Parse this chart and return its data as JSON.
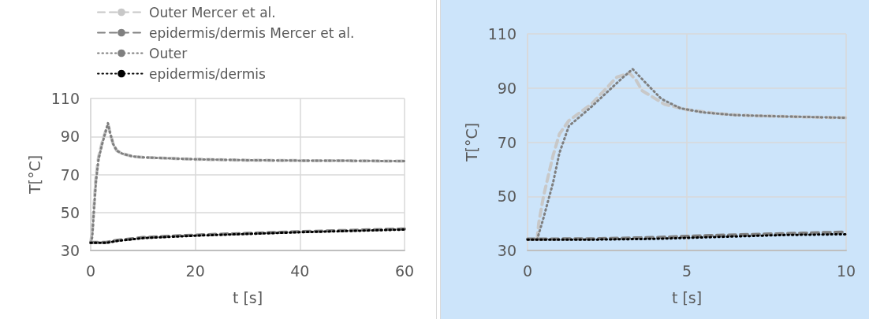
{
  "chart_data": [
    {
      "type": "line",
      "xlabel": "t [s]",
      "ylabel": "T[°C]",
      "xlim": [
        0,
        60
      ],
      "xticks": [
        0,
        20,
        40,
        60
      ],
      "ylim": [
        30,
        110
      ],
      "yticks": [
        30,
        50,
        70,
        90,
        110
      ],
      "grid": true,
      "legend": "top",
      "marker": "none",
      "series": [
        {
          "name": "Outer Mercer et al.",
          "color": "#c8c8c8",
          "line_style": "dashed",
          "x": [
            0,
            0.3,
            0.6,
            1,
            1.5,
            2.2,
            3,
            3.4,
            3.7,
            4.3,
            5,
            6,
            8,
            10,
            20,
            30,
            40,
            50,
            60
          ],
          "values": [
            34,
            40,
            52,
            68,
            79,
            87,
            94,
            95.5,
            92,
            86,
            82.5,
            81,
            79.5,
            79,
            78,
            77.5,
            77.3,
            77.2,
            77
          ]
        },
        {
          "name": "epidermis/dermis Mercer et al.",
          "color": "#808080",
          "line_style": "dashed",
          "x": [
            0,
            3,
            5,
            10,
            20,
            30,
            40,
            50,
            60
          ],
          "values": [
            34.2,
            34.3,
            35.3,
            36.8,
            38.1,
            39,
            39.9,
            40.6,
            41.3
          ]
        },
        {
          "name": "Outer",
          "color": "#7f7f7f",
          "line_style": "dotted",
          "x": [
            0,
            0.3,
            0.6,
            1,
            1.5,
            2.2,
            3,
            3.3,
            3.7,
            4.3,
            5,
            6,
            8,
            10,
            20,
            30,
            40,
            50,
            60
          ],
          "values": [
            34,
            37,
            50,
            66,
            78,
            86,
            94,
            97,
            92,
            86,
            82.5,
            81,
            79.5,
            79,
            78,
            77.5,
            77.3,
            77.2,
            77
          ]
        },
        {
          "name": "epidermis/dermis",
          "color": "#000000",
          "line_style": "dotted",
          "x": [
            0,
            3,
            5,
            10,
            20,
            30,
            40,
            50,
            60
          ],
          "values": [
            34,
            34,
            35,
            36.5,
            37.8,
            38.7,
            39.6,
            40.3,
            41
          ]
        }
      ]
    },
    {
      "type": "line",
      "xlabel": "t [s]",
      "ylabel": "T[°C]",
      "xlim": [
        0,
        10
      ],
      "xticks": [
        0,
        5,
        10
      ],
      "ylim": [
        30,
        110
      ],
      "yticks": [
        30,
        50,
        70,
        90,
        110
      ],
      "grid": true,
      "legend": false,
      "marker": "none",
      "series": [
        {
          "color": "#c8c8c8",
          "line_style": "dashed",
          "x": [
            0.3,
            0.35,
            0.5,
            0.8,
            1,
            1.3,
            2,
            2.8,
            3.2,
            3.4,
            3.6,
            4.3,
            5,
            6,
            7,
            8,
            10
          ],
          "values": [
            34,
            40,
            50,
            65,
            73,
            78,
            84,
            94,
            95.5,
            93,
            89,
            84,
            82,
            80.5,
            79.8,
            79.5,
            79
          ]
        },
        {
          "color": "#808080",
          "line_style": "dashed",
          "x": [
            0,
            2,
            4,
            6,
            8,
            10
          ],
          "values": [
            34.2,
            34.3,
            34.8,
            35.6,
            36.2,
            36.8
          ]
        },
        {
          "color": "#7f7f7f",
          "line_style": "dotted",
          "x": [
            0.3,
            0.5,
            0.8,
            1,
            1.3,
            2,
            3,
            3.3,
            3.7,
            4.2,
            4.8,
            5.5,
            6.5,
            8,
            10
          ],
          "values": [
            34,
            42,
            55,
            66,
            76,
            83,
            94,
            97,
            92,
            86,
            82.5,
            81,
            80,
            79.5,
            79
          ]
        },
        {
          "color": "#000000",
          "line_style": "dotted",
          "x": [
            0,
            2,
            4,
            6,
            8,
            10
          ],
          "values": [
            34,
            34,
            34.3,
            35,
            35.7,
            36
          ]
        }
      ]
    }
  ]
}
